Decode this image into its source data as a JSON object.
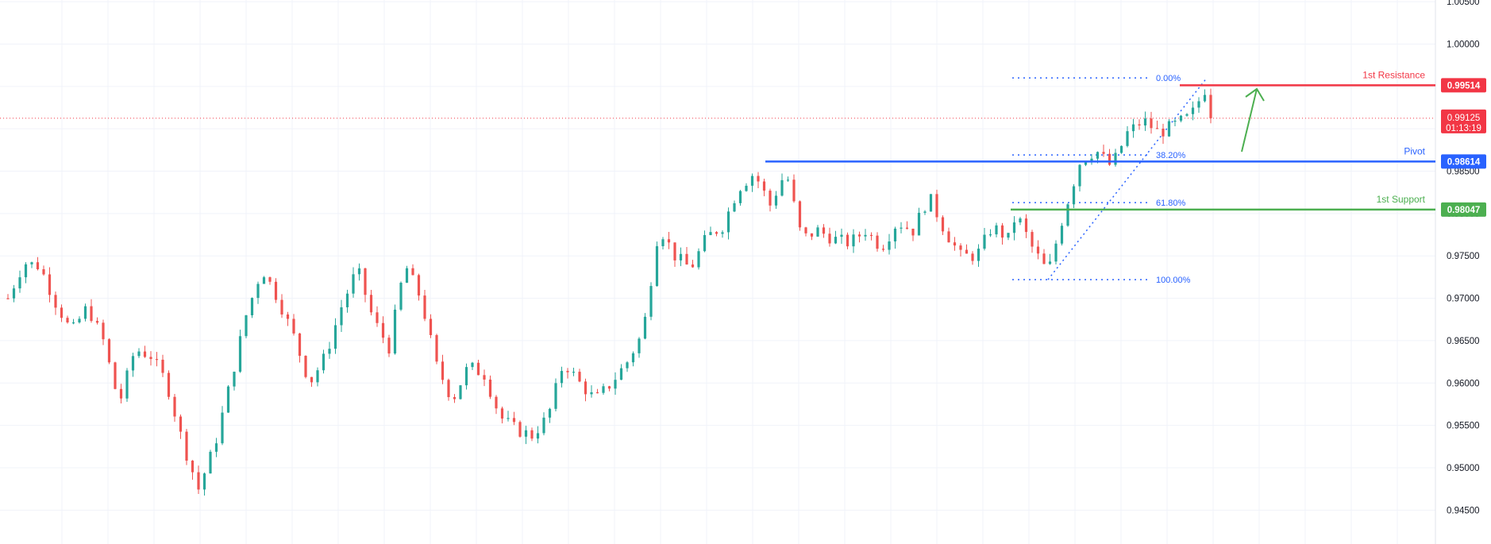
{
  "chart_data": {
    "type": "candlestick",
    "ylim": [
      0.941,
      1.0052
    ],
    "grid": true,
    "y_ticks": [
      "0.94500",
      "0.95000",
      "0.95500",
      "0.96000",
      "0.96500",
      "0.97000",
      "0.97500",
      "0.98000",
      "0.98500",
      "0.99000",
      "0.99500",
      "1.00000",
      "1.00500"
    ],
    "candle_count": 205,
    "colors": {
      "up": "#26a69a",
      "down": "#ef5350",
      "grid": "#f0f3fa",
      "axis_text": "#131722"
    },
    "price_path": [
      [
        0,
        0.97
      ],
      [
        4,
        0.9742
      ],
      [
        8,
        0.9738
      ],
      [
        12,
        0.9695
      ],
      [
        16,
        0.966
      ],
      [
        20,
        0.969
      ],
      [
        24,
        0.965
      ],
      [
        28,
        0.9575
      ],
      [
        32,
        0.964
      ],
      [
        36,
        0.9632
      ],
      [
        40,
        0.96
      ],
      [
        44,
        0.953
      ],
      [
        48,
        0.9475
      ],
      [
        52,
        0.9525
      ],
      [
        56,
        0.96
      ],
      [
        60,
        0.968
      ],
      [
        64,
        0.9735
      ],
      [
        68,
        0.97
      ],
      [
        72,
        0.9655
      ],
      [
        76,
        0.96
      ],
      [
        80,
        0.9632
      ],
      [
        84,
        0.969
      ],
      [
        88,
        0.9735
      ],
      [
        92,
        0.9675
      ],
      [
        96,
        0.9642
      ],
      [
        100,
        0.974
      ],
      [
        104,
        0.97
      ],
      [
        108,
        0.962
      ],
      [
        112,
        0.958
      ],
      [
        116,
        0.962
      ],
      [
        120,
        0.961
      ],
      [
        124,
        0.956
      ],
      [
        128,
        0.9545
      ],
      [
        132,
        0.9538
      ],
      [
        136,
        0.956
      ],
      [
        140,
        0.9625
      ],
      [
        144,
        0.96
      ],
      [
        148,
        0.958
      ],
      [
        152,
        0.96
      ],
      [
        156,
        0.9625
      ],
      [
        160,
        0.966
      ],
      [
        164,
        0.9785
      ],
      [
        168,
        0.975
      ],
      [
        172,
        0.9735
      ],
      [
        176,
        0.9772
      ],
      [
        180,
        0.9785
      ],
      [
        184,
        0.983
      ],
      [
        188,
        0.9848
      ],
      [
        192,
        0.981
      ],
      [
        196,
        0.985
      ],
      [
        200,
        0.977
      ],
      [
        204,
        0.978
      ],
      [
        208,
        0.977
      ],
      [
        212,
        0.9765
      ],
      [
        216,
        0.978
      ],
      [
        220,
        0.976
      ],
      [
        224,
        0.979
      ],
      [
        228,
        0.978
      ],
      [
        232,
        0.982
      ],
      [
        236,
        0.978
      ],
      [
        240,
        0.975
      ],
      [
        244,
        0.975
      ],
      [
        248,
        0.9785
      ],
      [
        252,
        0.977
      ],
      [
        254,
        0.98
      ],
      [
        258,
        0.976
      ],
      [
        262,
        0.973
      ],
      [
        266,
        0.98
      ],
      [
        270,
        0.986
      ],
      [
        274,
        0.9875
      ],
      [
        278,
        0.9855
      ],
      [
        282,
        0.9895
      ],
      [
        286,
        0.991
      ],
      [
        290,
        0.9895
      ],
      [
        294,
        0.9905
      ],
      [
        298,
        0.9915
      ],
      [
        302,
        0.9951
      ],
      [
        304,
        0.9912
      ]
    ],
    "levels": [
      {
        "name": "1st Resistance",
        "value": 0.99514,
        "label": "0.99514",
        "color": "#f23645"
      },
      {
        "name": "Pivot",
        "value": 0.98614,
        "label": "0.98614",
        "color": "#2962ff"
      },
      {
        "name": "1st Support",
        "value": 0.98047,
        "label": "0.98047",
        "color": "#4caf50"
      }
    ],
    "current_price": {
      "value": 0.99125,
      "label": "0.99125",
      "countdown": "01:13:19",
      "color": "#f23645"
    },
    "fibonacci": {
      "color": "#2962ff",
      "high": 0.996,
      "low": 0.9722,
      "levels": [
        {
          "ratio": 0.0,
          "label": "0.00%"
        },
        {
          "ratio": 0.382,
          "label": "38.20%"
        },
        {
          "ratio": 0.618,
          "label": "61.80%"
        },
        {
          "ratio": 1.0,
          "label": "100.00%"
        }
      ]
    },
    "arrow": {
      "color": "#4caf50",
      "direction": "up"
    }
  }
}
